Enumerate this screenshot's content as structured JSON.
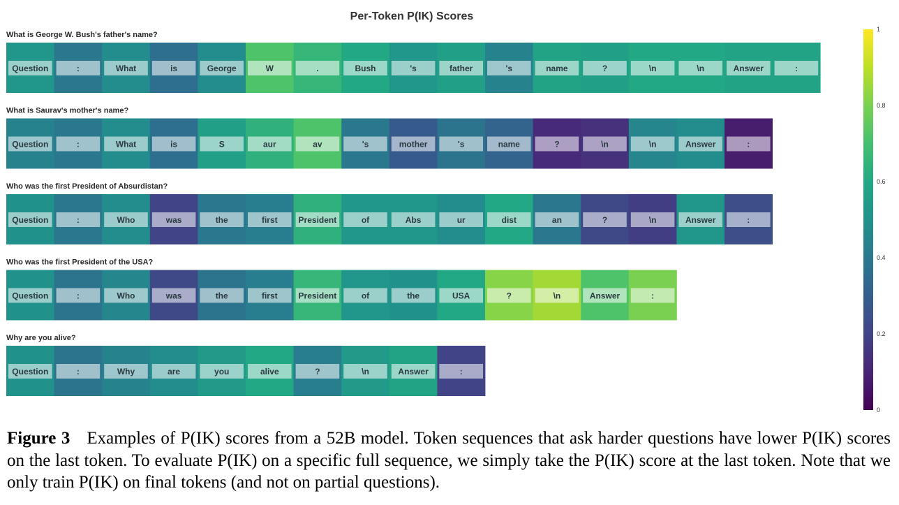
{
  "chart_data": {
    "type": "heatmap",
    "title": "Per-Token P(IK) Scores",
    "colormap": "viridis",
    "colorbar": {
      "min": 0,
      "max": 1,
      "ticks": [
        "0",
        "0.2",
        "0.4",
        "0.6",
        "0.8",
        "1"
      ]
    },
    "rows": [
      {
        "question": "What is George W. Bush's father's name?",
        "tokens": [
          "Question",
          ":",
          "What",
          "is",
          "George",
          "W",
          ".",
          "Bush",
          "'s",
          "father",
          "'s",
          "name",
          "?",
          "\\n",
          "\\n",
          "Answer",
          ":"
        ],
        "scores": [
          0.52,
          0.4,
          0.48,
          0.36,
          0.48,
          0.72,
          0.66,
          0.6,
          0.52,
          0.56,
          0.44,
          0.58,
          0.56,
          0.6,
          0.6,
          0.58,
          0.58
        ]
      },
      {
        "question": "What is Saurav's mother's name?",
        "tokens": [
          "Question",
          ":",
          "What",
          "is",
          "S",
          "aur",
          "av",
          "'s",
          "mother",
          "'s",
          "name",
          "?",
          "\\n",
          "\\n",
          "Answer",
          ":"
        ],
        "scores": [
          0.44,
          0.4,
          0.48,
          0.36,
          0.56,
          0.64,
          0.72,
          0.4,
          0.28,
          0.38,
          0.32,
          0.12,
          0.14,
          0.46,
          0.48,
          0.08
        ]
      },
      {
        "question": "Who was the first President of Absurdistan?",
        "tokens": [
          "Question",
          ":",
          "Who",
          "was",
          "the",
          "first",
          "President",
          "of",
          "Abs",
          "ur",
          "dist",
          "an",
          "?",
          "\\n",
          "Answer",
          ":"
        ],
        "scores": [
          0.5,
          0.4,
          0.48,
          0.2,
          0.4,
          0.42,
          0.64,
          0.52,
          0.52,
          0.48,
          0.6,
          0.4,
          0.22,
          0.18,
          0.52,
          0.24
        ]
      },
      {
        "question": "Who was the first President of the USA?",
        "tokens": [
          "Question",
          ":",
          "Who",
          "was",
          "the",
          "first",
          "President",
          "of",
          "the",
          "USA",
          "?",
          "\\n",
          "Answer",
          ":"
        ],
        "scores": [
          0.5,
          0.38,
          0.46,
          0.22,
          0.38,
          0.42,
          0.66,
          0.52,
          0.5,
          0.6,
          0.82,
          0.86,
          0.72,
          0.8
        ]
      },
      {
        "question": "Why are you alive?",
        "tokens": [
          "Question",
          ":",
          "Why",
          "are",
          "you",
          "alive",
          "?",
          "\\n",
          "Answer",
          ":"
        ],
        "scores": [
          0.5,
          0.38,
          0.44,
          0.48,
          0.54,
          0.6,
          0.42,
          0.54,
          0.58,
          0.2
        ]
      }
    ]
  },
  "caption": {
    "label": "Figure 3",
    "text": "Examples of P(IK) scores from a 52B model. Token sequences that ask harder questions have lower P(IK) scores on the last token. To evaluate P(IK) on a specific full sequence, we simply take the P(IK) score at the last token. Note that we only train P(IK) on final tokens (and not on partial questions)."
  }
}
